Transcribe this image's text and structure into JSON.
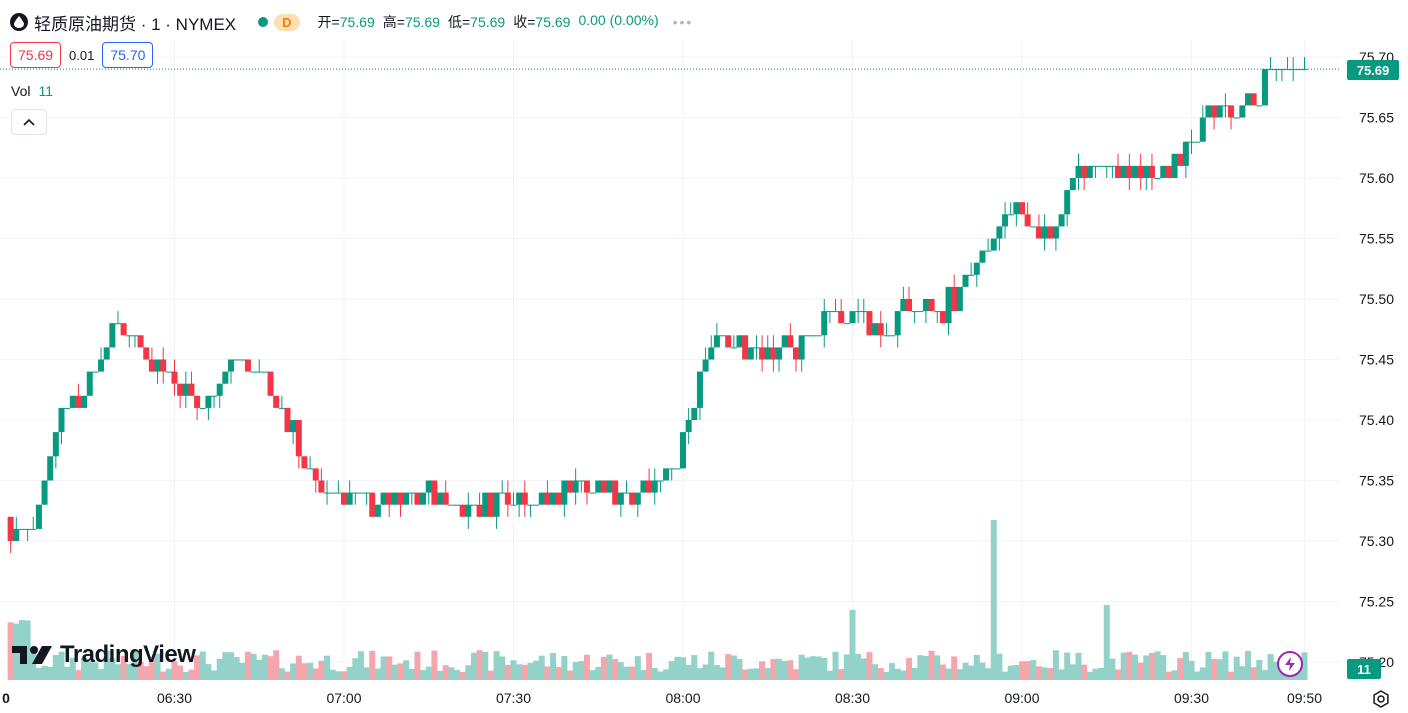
{
  "header": {
    "symbol_title": "轻质原油期货 · 1 · NYMEX",
    "status_badge": "D",
    "ohlc": {
      "open_label": "开=",
      "open": "75.69",
      "high_label": "高=",
      "high": "75.69",
      "low_label": "低=",
      "low": "75.69",
      "close_label": "收=",
      "close": "75.69",
      "change": "0.00 (0.00%)"
    },
    "more": "•••"
  },
  "quote": {
    "bid": "75.69",
    "spread": "0.01",
    "ask": "75.70"
  },
  "volume_legend": {
    "label": "Vol",
    "value": "11"
  },
  "last_price_tag": "75.69",
  "volume_tag": "11",
  "logo_text": "TradingView",
  "colors": {
    "up": "#089981",
    "down": "#f23645",
    "up_vol": "#93d2c8",
    "down_vol": "#f5a6ad",
    "grid": "#f0f3fa",
    "axis_text": "#131722"
  },
  "icons": [
    "drop-icon",
    "chevron-up-icon",
    "lightning-icon",
    "settings-icon"
  ],
  "chart_data": {
    "type": "candlestick",
    "x_ticks": [
      "0",
      "06:30",
      "07:00",
      "07:30",
      "08:00",
      "08:30",
      "09:00",
      "09:30",
      "09:50"
    ],
    "y_ticks": [
      "75.70",
      "75.65",
      "75.60",
      "75.55",
      "75.50",
      "75.45",
      "75.40",
      "75.35",
      "75.30",
      "75.25",
      "75.20"
    ],
    "y_range": [
      75.18,
      75.72
    ],
    "last_price": 75.69,
    "series": [
      {
        "name": "price",
        "trend": [
          [
            "06:05",
            75.32
          ],
          [
            "06:10",
            75.41
          ],
          [
            "06:15",
            75.43
          ],
          [
            "06:20",
            75.48
          ],
          [
            "06:25",
            75.46
          ],
          [
            "06:30",
            75.43
          ],
          [
            "06:35",
            75.41
          ],
          [
            "06:40",
            75.45
          ],
          [
            "06:45",
            75.44
          ],
          [
            "06:50",
            75.4
          ],
          [
            "06:55",
            75.34
          ],
          [
            "07:00",
            75.34
          ],
          [
            "07:05",
            75.33
          ],
          [
            "07:10",
            75.33
          ],
          [
            "07:15",
            75.34
          ],
          [
            "07:20",
            75.33
          ],
          [
            "07:25",
            75.33
          ],
          [
            "07:30",
            75.34
          ],
          [
            "07:35",
            75.33
          ],
          [
            "07:40",
            75.35
          ],
          [
            "07:45",
            75.34
          ],
          [
            "07:50",
            75.34
          ],
          [
            "07:55",
            75.35
          ],
          [
            "08:00",
            75.38
          ],
          [
            "08:05",
            75.46
          ],
          [
            "08:10",
            75.46
          ],
          [
            "08:15",
            75.46
          ],
          [
            "08:20",
            75.46
          ],
          [
            "08:25",
            75.48
          ],
          [
            "08:30",
            75.49
          ],
          [
            "08:35",
            75.47
          ],
          [
            "08:40",
            75.49
          ],
          [
            "08:45",
            75.49
          ],
          [
            "08:50",
            75.51
          ],
          [
            "08:55",
            75.55
          ],
          [
            "09:00",
            75.57
          ],
          [
            "09:05",
            75.55
          ],
          [
            "09:10",
            75.61
          ],
          [
            "09:15",
            75.61
          ],
          [
            "09:20",
            75.6
          ],
          [
            "09:25",
            75.6
          ],
          [
            "09:30",
            75.64
          ],
          [
            "09:35",
            75.65
          ],
          [
            "09:40",
            75.66
          ],
          [
            "09:45",
            75.69
          ],
          [
            "09:50",
            75.69
          ]
        ]
      }
    ],
    "volume_peaks": [
      [
        "08:30",
        70
      ],
      [
        "08:55",
        160
      ],
      [
        "09:15",
        75
      ]
    ]
  }
}
